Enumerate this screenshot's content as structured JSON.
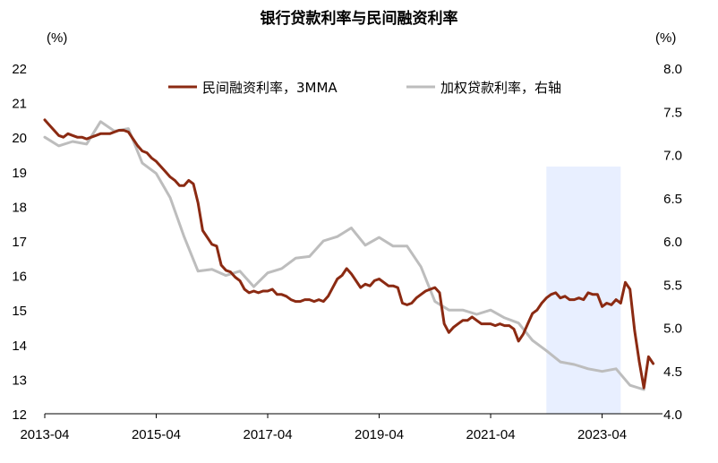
{
  "chart_data": {
    "type": "line",
    "title": "银行贷款利率与民间融资利率",
    "left_unit": "(%)",
    "right_unit": "(%)",
    "xlabel": "",
    "ylabel": "",
    "ylim_left": [
      12,
      22
    ],
    "ylim_right": [
      4.0,
      8.0
    ],
    "x_ticks": [
      "2013-04",
      "2015-04",
      "2017-04",
      "2019-04",
      "2021-04",
      "2023-04"
    ],
    "y_ticks_left": [
      "12",
      "13",
      "14",
      "15",
      "16",
      "17",
      "18",
      "19",
      "20",
      "21",
      "22"
    ],
    "y_ticks_right": [
      "4.0",
      "4.5",
      "5.0",
      "5.5",
      "6.0",
      "6.5",
      "7.0",
      "7.5",
      "8.0"
    ],
    "legend_position": "top",
    "shaded_region": {
      "x_start": "2022-04",
      "x_end": "2023-08",
      "color": "#e8efff"
    },
    "series": [
      {
        "name": "民间融资利率，3MMA",
        "axis": "left",
        "color": "#8b2a12",
        "points": [
          [
            "2013-04",
            20.5
          ],
          [
            "2013-05",
            20.35
          ],
          [
            "2013-06",
            20.2
          ],
          [
            "2013-07",
            20.05
          ],
          [
            "2013-08",
            20.0
          ],
          [
            "2013-09",
            20.1
          ],
          [
            "2013-10",
            20.05
          ],
          [
            "2013-11",
            20.0
          ],
          [
            "2013-12",
            20.0
          ],
          [
            "2014-01",
            19.95
          ],
          [
            "2014-02",
            20.0
          ],
          [
            "2014-03",
            20.05
          ],
          [
            "2014-04",
            20.1
          ],
          [
            "2014-05",
            20.1
          ],
          [
            "2014-06",
            20.1
          ],
          [
            "2014-07",
            20.15
          ],
          [
            "2014-08",
            20.2
          ],
          [
            "2014-09",
            20.2
          ],
          [
            "2014-10",
            20.15
          ],
          [
            "2014-11",
            19.95
          ],
          [
            "2014-12",
            19.75
          ],
          [
            "2015-01",
            19.6
          ],
          [
            "2015-02",
            19.55
          ],
          [
            "2015-03",
            19.4
          ],
          [
            "2015-04",
            19.3
          ],
          [
            "2015-05",
            19.15
          ],
          [
            "2015-06",
            19.0
          ],
          [
            "2015-07",
            18.85
          ],
          [
            "2015-08",
            18.75
          ],
          [
            "2015-09",
            18.6
          ],
          [
            "2015-10",
            18.6
          ],
          [
            "2015-11",
            18.75
          ],
          [
            "2015-12",
            18.65
          ],
          [
            "2016-01",
            18.1
          ],
          [
            "2016-02",
            17.3
          ],
          [
            "2016-03",
            17.1
          ],
          [
            "2016-04",
            16.9
          ],
          [
            "2016-05",
            16.85
          ],
          [
            "2016-06",
            16.3
          ],
          [
            "2016-07",
            16.15
          ],
          [
            "2016-08",
            16.1
          ],
          [
            "2016-09",
            15.95
          ],
          [
            "2016-10",
            15.85
          ],
          [
            "2016-11",
            15.6
          ],
          [
            "2016-12",
            15.5
          ],
          [
            "2017-01",
            15.55
          ],
          [
            "2017-02",
            15.5
          ],
          [
            "2017-03",
            15.55
          ],
          [
            "2017-04",
            15.55
          ],
          [
            "2017-05",
            15.6
          ],
          [
            "2017-06",
            15.45
          ],
          [
            "2017-07",
            15.45
          ],
          [
            "2017-08",
            15.4
          ],
          [
            "2017-09",
            15.3
          ],
          [
            "2017-10",
            15.25
          ],
          [
            "2017-11",
            15.25
          ],
          [
            "2017-12",
            15.3
          ],
          [
            "2018-01",
            15.3
          ],
          [
            "2018-02",
            15.25
          ],
          [
            "2018-03",
            15.3
          ],
          [
            "2018-04",
            15.25
          ],
          [
            "2018-05",
            15.4
          ],
          [
            "2018-06",
            15.65
          ],
          [
            "2018-07",
            15.9
          ],
          [
            "2018-08",
            16.0
          ],
          [
            "2018-09",
            16.2
          ],
          [
            "2018-10",
            16.05
          ],
          [
            "2018-11",
            15.85
          ],
          [
            "2018-12",
            15.65
          ],
          [
            "2019-01",
            15.75
          ],
          [
            "2019-02",
            15.7
          ],
          [
            "2019-03",
            15.85
          ],
          [
            "2019-04",
            15.9
          ],
          [
            "2019-05",
            15.8
          ],
          [
            "2019-06",
            15.7
          ],
          [
            "2019-07",
            15.7
          ],
          [
            "2019-08",
            15.65
          ],
          [
            "2019-09",
            15.2
          ],
          [
            "2019-10",
            15.15
          ],
          [
            "2019-11",
            15.2
          ],
          [
            "2019-12",
            15.35
          ],
          [
            "2020-01",
            15.45
          ],
          [
            "2020-02",
            15.55
          ],
          [
            "2020-03",
            15.6
          ],
          [
            "2020-04",
            15.65
          ],
          [
            "2020-05",
            15.5
          ],
          [
            "2020-06",
            14.6
          ],
          [
            "2020-07",
            14.35
          ],
          [
            "2020-08",
            14.5
          ],
          [
            "2020-09",
            14.6
          ],
          [
            "2020-10",
            14.7
          ],
          [
            "2020-11",
            14.7
          ],
          [
            "2020-12",
            14.8
          ],
          [
            "2021-01",
            14.7
          ],
          [
            "2021-02",
            14.6
          ],
          [
            "2021-03",
            14.6
          ],
          [
            "2021-04",
            14.6
          ],
          [
            "2021-05",
            14.55
          ],
          [
            "2021-06",
            14.6
          ],
          [
            "2021-07",
            14.55
          ],
          [
            "2021-08",
            14.55
          ],
          [
            "2021-09",
            14.45
          ],
          [
            "2021-10",
            14.1
          ],
          [
            "2021-11",
            14.3
          ],
          [
            "2021-12",
            14.6
          ],
          [
            "2022-01",
            14.9
          ],
          [
            "2022-02",
            15.0
          ],
          [
            "2022-03",
            15.2
          ],
          [
            "2022-04",
            15.35
          ],
          [
            "2022-05",
            15.45
          ],
          [
            "2022-06",
            15.5
          ],
          [
            "2022-07",
            15.35
          ],
          [
            "2022-08",
            15.4
          ],
          [
            "2022-09",
            15.3
          ],
          [
            "2022-10",
            15.3
          ],
          [
            "2022-11",
            15.35
          ],
          [
            "2022-12",
            15.3
          ],
          [
            "2023-01",
            15.5
          ],
          [
            "2023-02",
            15.45
          ],
          [
            "2023-03",
            15.45
          ],
          [
            "2023-04",
            15.1
          ],
          [
            "2023-05",
            15.2
          ],
          [
            "2023-06",
            15.15
          ],
          [
            "2023-07",
            15.3
          ],
          [
            "2023-08",
            15.2
          ],
          [
            "2023-09",
            15.8
          ],
          [
            "2023-10",
            15.6
          ],
          [
            "2023-11",
            14.4
          ],
          [
            "2023-12",
            13.5
          ],
          [
            "2024-01",
            12.75
          ],
          [
            "2024-02",
            13.65
          ],
          [
            "2024-03",
            13.45
          ]
        ]
      },
      {
        "name": "加权贷款利率，右轴",
        "axis": "right",
        "color": "#bdbdbd",
        "points": [
          [
            "2013-04",
            7.2
          ],
          [
            "2013-07",
            7.1
          ],
          [
            "2013-10",
            7.15
          ],
          [
            "2014-01",
            7.12
          ],
          [
            "2014-04",
            7.38
          ],
          [
            "2014-07",
            7.27
          ],
          [
            "2014-10",
            7.3
          ],
          [
            "2015-01",
            6.9
          ],
          [
            "2015-04",
            6.78
          ],
          [
            "2015-07",
            6.5
          ],
          [
            "2015-10",
            6.05
          ],
          [
            "2016-01",
            5.65
          ],
          [
            "2016-04",
            5.67
          ],
          [
            "2016-07",
            5.6
          ],
          [
            "2016-10",
            5.65
          ],
          [
            "2017-01",
            5.47
          ],
          [
            "2017-04",
            5.63
          ],
          [
            "2017-07",
            5.68
          ],
          [
            "2017-10",
            5.8
          ],
          [
            "2018-01",
            5.82
          ],
          [
            "2018-04",
            6.0
          ],
          [
            "2018-07",
            6.05
          ],
          [
            "2018-10",
            6.15
          ],
          [
            "2019-01",
            5.95
          ],
          [
            "2019-04",
            6.04
          ],
          [
            "2019-07",
            5.94
          ],
          [
            "2019-10",
            5.94
          ],
          [
            "2020-01",
            5.7
          ],
          [
            "2020-04",
            5.3
          ],
          [
            "2020-07",
            5.2
          ],
          [
            "2020-10",
            5.2
          ],
          [
            "2021-01",
            5.15
          ],
          [
            "2021-04",
            5.2
          ],
          [
            "2021-07",
            5.11
          ],
          [
            "2021-10",
            5.05
          ],
          [
            "2022-01",
            4.85
          ],
          [
            "2022-04",
            4.73
          ],
          [
            "2022-07",
            4.6
          ],
          [
            "2022-10",
            4.57
          ],
          [
            "2023-01",
            4.52
          ],
          [
            "2023-04",
            4.49
          ],
          [
            "2023-07",
            4.52
          ],
          [
            "2023-10",
            4.33
          ],
          [
            "2024-01",
            4.28
          ]
        ]
      }
    ]
  }
}
